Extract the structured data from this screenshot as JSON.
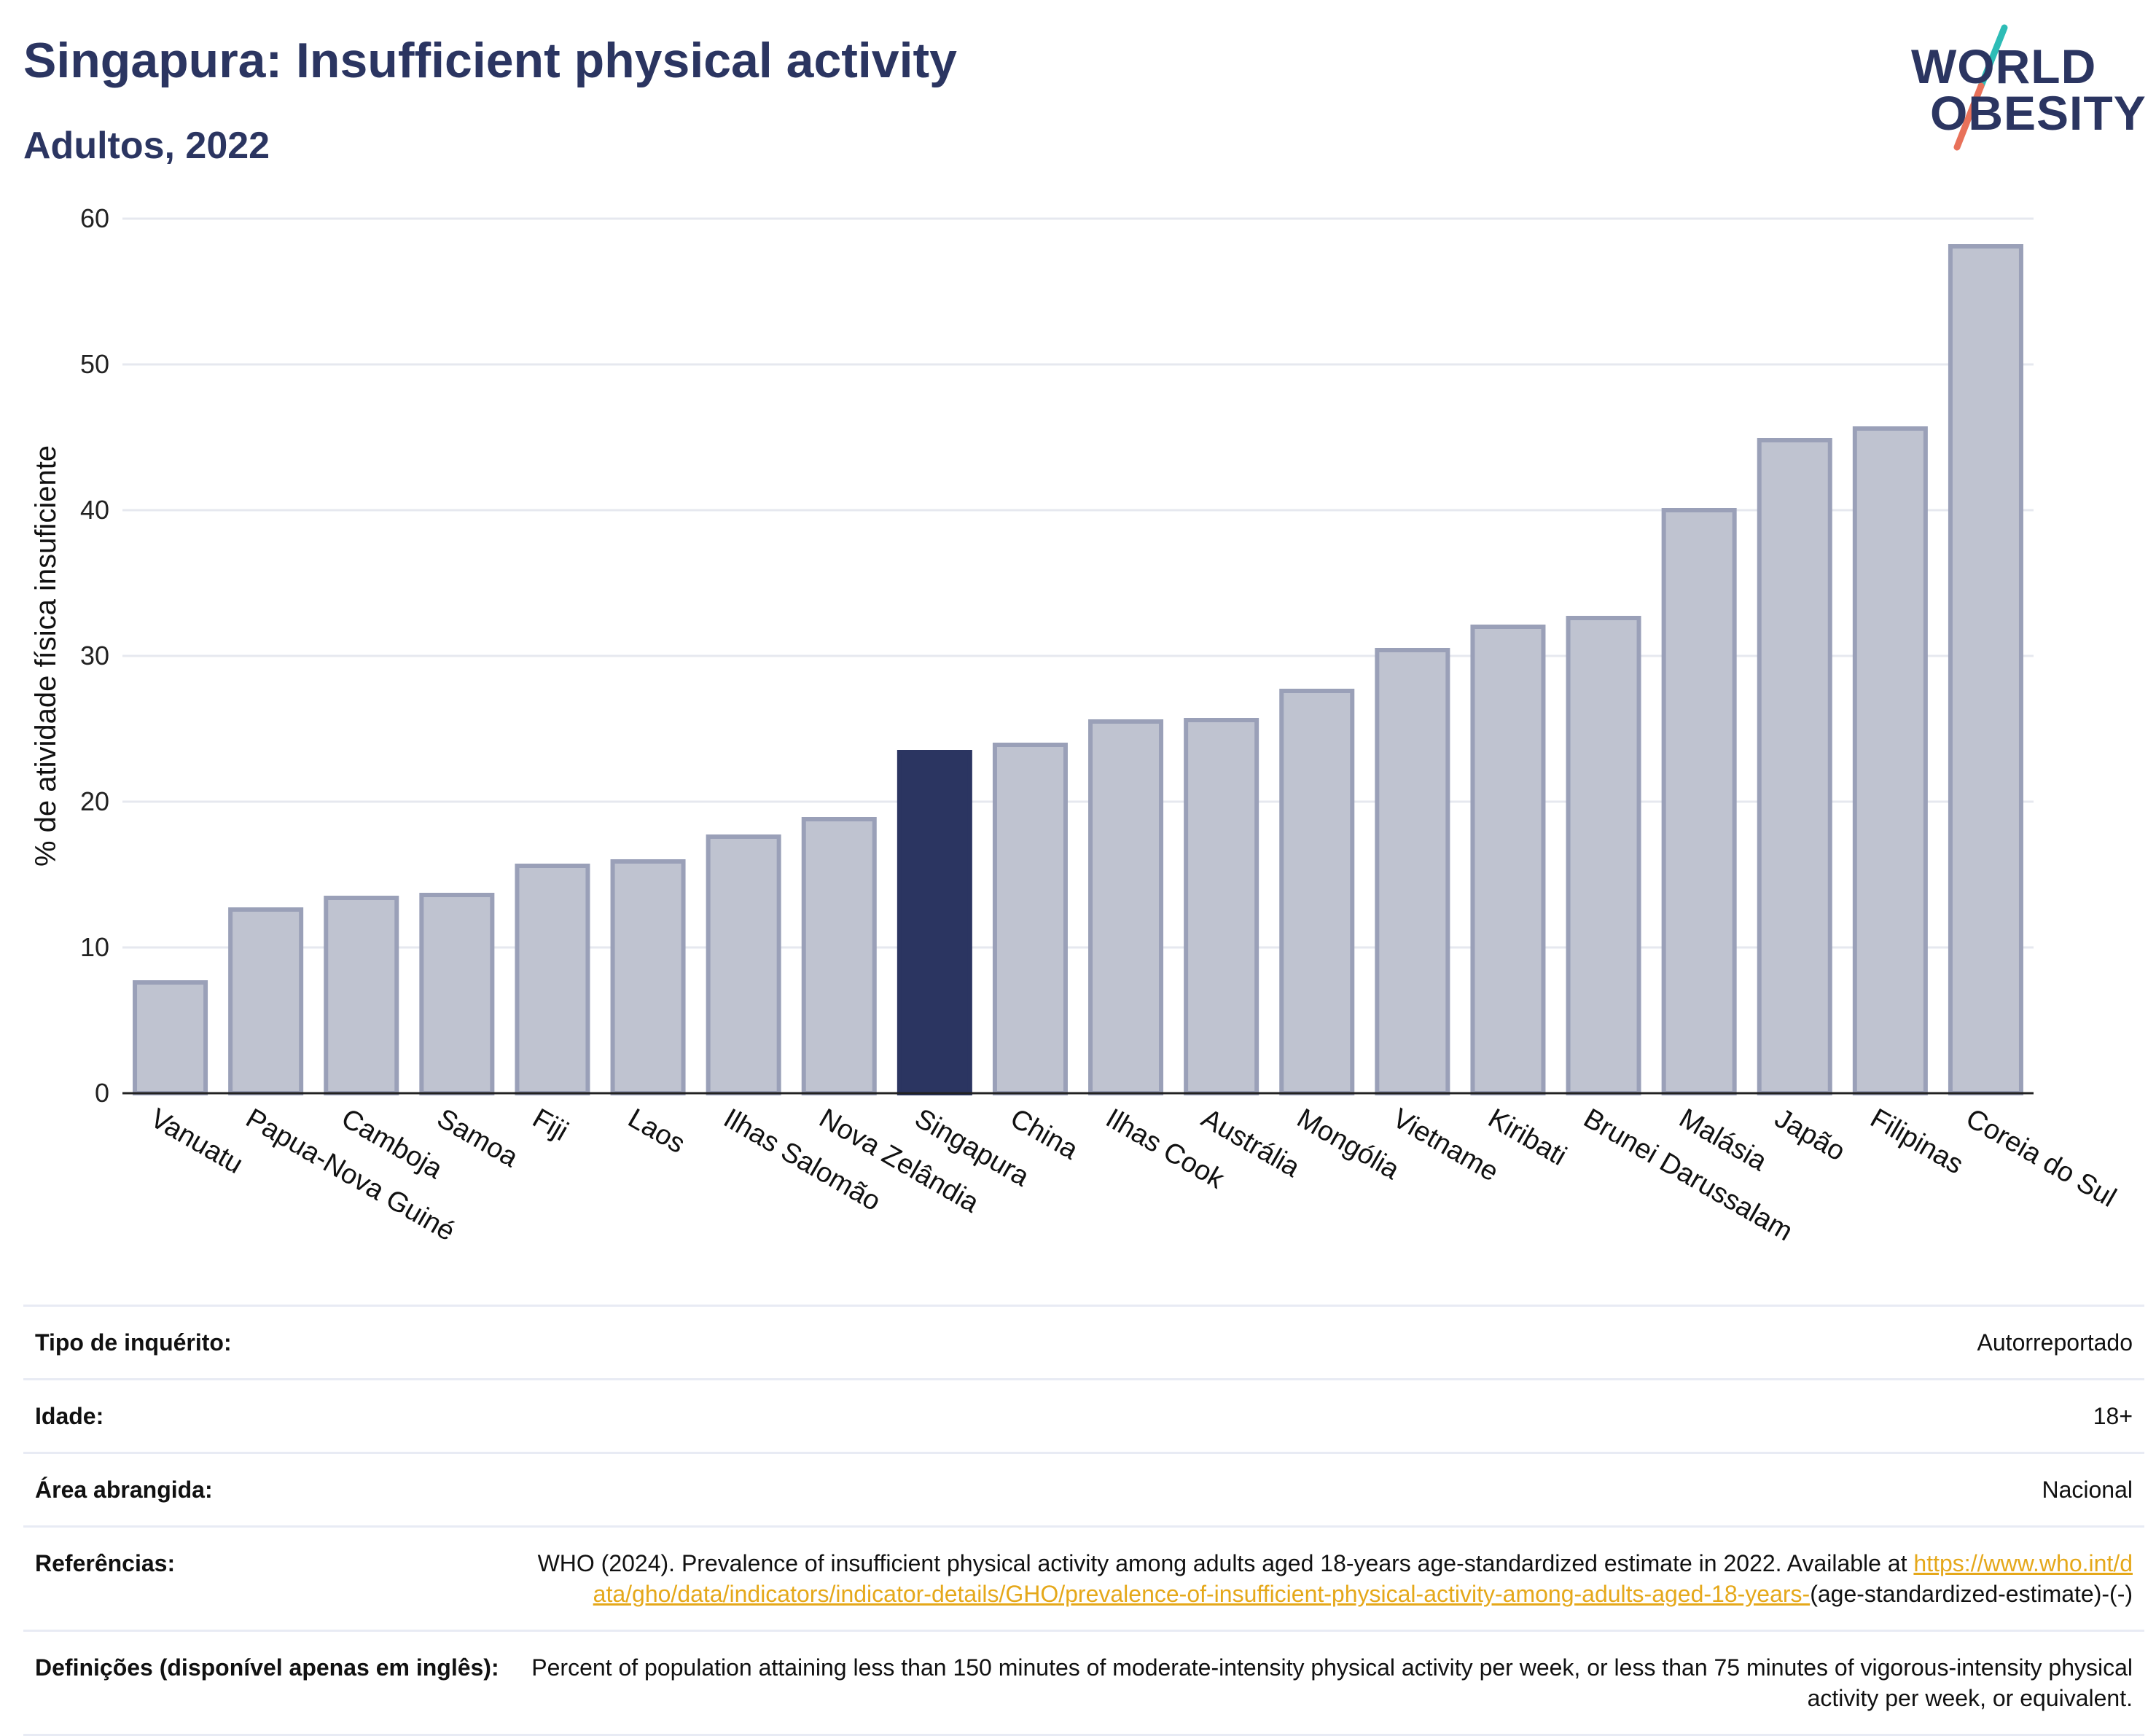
{
  "header": {
    "title": "Singapura: Insufficient physical activity",
    "subtitle": "Adultos, 2022"
  },
  "logo": {
    "line1": "WORLD",
    "line2": "OBESITY",
    "slash_colors": [
      "#2dbcb6",
      "#e8715a"
    ]
  },
  "colors": {
    "bar_default": "#bfc3d0",
    "bar_default_border": "#9aa0b8",
    "bar_highlight": "#2b3561",
    "grid": "#e6e8ef",
    "link": "#e5a81a"
  },
  "chart_data": {
    "type": "bar",
    "title": "",
    "xlabel": "",
    "ylabel": "% de atividade física insuficiente",
    "ylim": [
      0,
      60
    ],
    "yticks": [
      0,
      10,
      20,
      30,
      40,
      50,
      60
    ],
    "grid": true,
    "highlight": "Singapura",
    "categories": [
      "Vanuatu",
      "Papua-Nova Guiné",
      "Camboja",
      "Samoa",
      "Fiji",
      "Laos",
      "Ilhas Salomão",
      "Nova Zelândia",
      "Singapura",
      "China",
      "Ilhas Cook",
      "Austrália",
      "Mongólia",
      "Vietname",
      "Kiribati",
      "Brunei Darussalam",
      "Malásia",
      "Japão",
      "Filipinas",
      "Coreia do Sul"
    ],
    "values": [
      7.6,
      12.6,
      13.4,
      13.6,
      15.6,
      15.9,
      17.6,
      18.8,
      23.4,
      23.9,
      25.5,
      25.6,
      27.6,
      30.4,
      32.0,
      32.6,
      40.0,
      44.8,
      45.6,
      58.1
    ]
  },
  "info": {
    "survey_type_label": "Tipo de inquérito:",
    "survey_type_value": "Autorreportado",
    "age_label": "Idade:",
    "age_value": "18+",
    "coverage_label": "Área abrangida:",
    "coverage_value": "Nacional",
    "references_label": "Referências:",
    "references_text": "WHO (2024). Prevalence of insufficient physical activity among adults aged 18-years age-standardized estimate in 2022. Available at ",
    "references_link": "https://www.who.int/data/gho/data/indicators/indicator-details/GHO/prevalence-of-insufficient-physical-activity-among-adults-aged-18-years-",
    "references_suffix": "(age-standardized-estimate)-(-)",
    "definitions_label": "Definições (disponível apenas em inglês):",
    "definitions_value": "Percent of population attaining less than 150 minutes of moderate-intensity physical activity per week, or less than 75 minutes of vigorous-intensity physical activity per week, or equivalent."
  }
}
